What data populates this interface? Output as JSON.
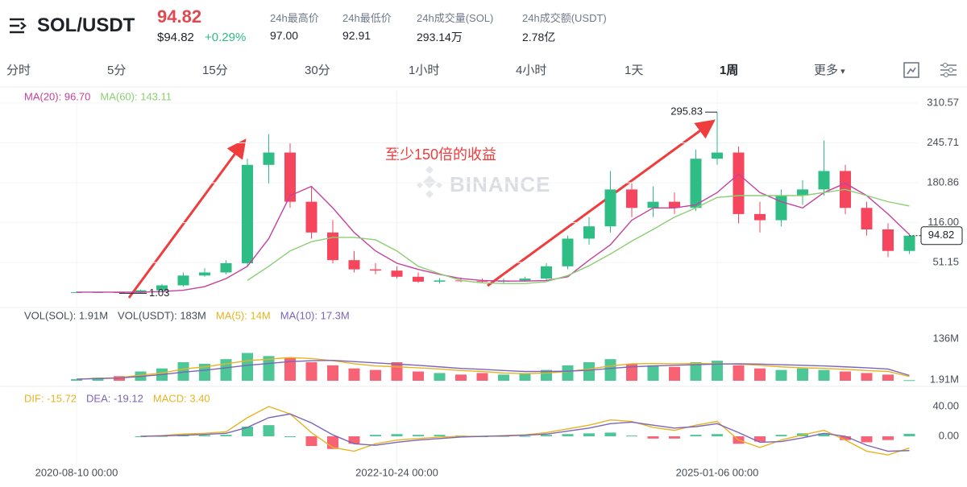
{
  "header": {
    "symbol": "SOL/USDT",
    "price": "94.82",
    "price_usd": "$94.82",
    "change": "+0.29%",
    "stats": [
      {
        "label": "24h最高价",
        "value": "97.00"
      },
      {
        "label": "24h最低价",
        "value": "92.91"
      },
      {
        "label": "24h成交量(SOL)",
        "value": "293.14万"
      },
      {
        "label": "24h成交额(USDT)",
        "value": "2.78亿"
      }
    ]
  },
  "tabs": [
    "分时",
    "5分",
    "15分",
    "30分",
    "1小时",
    "4小时",
    "1天",
    "1周",
    "更多"
  ],
  "annotation": "至少150倍的收益",
  "watermark": "BINANCE",
  "chart_data": [
    {
      "type": "candlestick",
      "legend": [
        "MA(20): 96.70",
        "MA(60): 143.11"
      ],
      "categories": [
        "2020-08-10 00:00",
        null,
        null,
        null,
        null,
        null,
        null,
        null,
        null,
        null,
        null,
        null,
        null,
        null,
        null,
        "2022-10-24 00:00",
        null,
        null,
        null,
        null,
        null,
        null,
        null,
        null,
        null,
        null,
        null,
        null,
        null,
        null,
        "2025-01-06 00:00",
        null,
        null,
        null,
        null,
        null,
        null,
        null,
        null,
        null
      ],
      "open": [
        3,
        3,
        3,
        2,
        6,
        14,
        30,
        35,
        50,
        210,
        230,
        150,
        100,
        55,
        40,
        38,
        28,
        20,
        22,
        21,
        20,
        22,
        25,
        45,
        90,
        110,
        170,
        140,
        150,
        140,
        220,
        230,
        130,
        120,
        160,
        170,
        200,
        140,
        105,
        70
      ],
      "high": [
        4,
        4,
        3.5,
        7,
        16,
        35,
        42,
        55,
        220,
        260,
        245,
        175,
        120,
        70,
        50,
        45,
        35,
        26,
        27,
        25,
        25,
        28,
        50,
        95,
        125,
        200,
        180,
        175,
        165,
        235,
        295.83,
        240,
        150,
        170,
        185,
        250,
        210,
        150,
        115,
        98
      ],
      "low": [
        2.5,
        2.5,
        1.03,
        1.8,
        5,
        12,
        28,
        32,
        45,
        180,
        140,
        90,
        50,
        35,
        32,
        25,
        18,
        17,
        19,
        18,
        18,
        20,
        23,
        40,
        80,
        100,
        125,
        125,
        130,
        135,
        210,
        115,
        100,
        110,
        145,
        160,
        130,
        95,
        60,
        65
      ],
      "close": [
        3,
        3,
        2,
        6,
        14,
        30,
        35,
        50,
        210,
        230,
        150,
        100,
        55,
        40,
        38,
        28,
        20,
        22,
        21,
        20,
        22,
        25,
        45,
        90,
        110,
        170,
        140,
        150,
        140,
        220,
        230,
        130,
        120,
        160,
        170,
        200,
        140,
        105,
        70,
        94.82
      ],
      "ma20": [
        3,
        3,
        3,
        3,
        4,
        6,
        12,
        25,
        45,
        90,
        160,
        175,
        140,
        100,
        70,
        50,
        40,
        32,
        25,
        22,
        21,
        21,
        22,
        28,
        55,
        80,
        120,
        140,
        140,
        145,
        165,
        195,
        165,
        150,
        140,
        165,
        180,
        160,
        130,
        96.7
      ],
      "ma60": [
        null,
        null,
        null,
        null,
        null,
        null,
        null,
        null,
        22,
        45,
        70,
        85,
        92,
        92,
        88,
        70,
        45,
        33,
        22,
        18,
        17,
        17,
        20,
        30,
        46,
        65,
        86,
        105,
        125,
        140,
        157,
        160,
        160,
        160,
        160,
        165,
        170,
        160,
        150,
        143.11
      ],
      "ma20_color": "#c4429e",
      "ma60_color": "#8bcf73",
      "up_color": "#2ebd85",
      "down_color": "#f6465d",
      "ylim": [
        -22,
        331.5
      ],
      "yticks": [
        310.57,
        245.71,
        180.86,
        {
          "value": 116,
          "label": "116.00"
        },
        51.15
      ],
      "grid": true
    },
    {
      "type": "bar",
      "legend": [
        "VOL(SOL): 1.91M",
        "VOL(USDT): 183M",
        "MA(5): 14M",
        "MA(10): 17.3M"
      ],
      "values": [
        5,
        10,
        15,
        30,
        40,
        60,
        55,
        70,
        90,
        80,
        75,
        60,
        50,
        40,
        35,
        60,
        30,
        25,
        20,
        25,
        20,
        25,
        35,
        50,
        60,
        70,
        55,
        50,
        45,
        60,
        65,
        50,
        40,
        35,
        40,
        35,
        30,
        25,
        20,
        1.91
      ],
      "ma5": [
        5,
        8,
        10,
        18,
        25,
        38,
        45,
        55,
        65,
        70,
        75,
        72,
        65,
        55,
        48,
        45,
        42,
        38,
        33,
        30,
        25,
        23,
        25,
        30,
        38,
        48,
        55,
        56,
        55,
        56,
        55,
        54,
        50,
        45,
        42,
        40,
        37,
        33,
        30,
        14
      ],
      "ma10": [
        5,
        7,
        9,
        14,
        20,
        28,
        34,
        42,
        50,
        56,
        62,
        65,
        66,
        62,
        58,
        54,
        50,
        45,
        40,
        37,
        33,
        30,
        30,
        31,
        34,
        40,
        45,
        48,
        50,
        52,
        54,
        55,
        54,
        52,
        50,
        48,
        45,
        42,
        38,
        17.3
      ],
      "ma5_color": "#e6b422",
      "ma10_color": "#7b65b8",
      "ylim": [
        0,
        180
      ],
      "yticks": [
        {
          "value": 136,
          "label": "136M"
        },
        {
          "value": 1.91,
          "label": "1.91M"
        }
      ]
    },
    {
      "type": "macd",
      "legend": [
        "DIF: -15.72",
        "DEA: -19.12",
        "MACD: 3.40"
      ],
      "dif": [
        null,
        null,
        null,
        0,
        1,
        3,
        4,
        6,
        25,
        40,
        30,
        5,
        -15,
        -20,
        -10,
        -5,
        -3,
        -1,
        0,
        0,
        1,
        2,
        5,
        10,
        15,
        22,
        20,
        12,
        8,
        15,
        20,
        -5,
        -15,
        -5,
        2,
        8,
        -5,
        -20,
        -25,
        -15.72
      ],
      "dea": [
        null,
        null,
        null,
        0,
        0.5,
        1.5,
        2.5,
        4,
        12,
        25,
        30,
        18,
        2,
        -10,
        -12,
        -8,
        -5,
        -3,
        -1,
        0,
        0.5,
        1.5,
        3,
        7,
        11,
        17,
        19,
        15,
        11,
        13,
        17,
        5,
        -8,
        -7,
        -2,
        4,
        0,
        -12,
        -20,
        -19.12
      ],
      "macd": [
        null,
        null,
        null,
        0,
        0.5,
        1.5,
        1.5,
        2,
        13,
        15,
        0,
        -13,
        -17,
        -10,
        2,
        3,
        2,
        2,
        1,
        0,
        0.5,
        0.5,
        2,
        3,
        4,
        5,
        1,
        -3,
        -3,
        2,
        3,
        -10,
        -7,
        2,
        4,
        4,
        -5,
        -8,
        -5,
        3.4
      ],
      "dif_color": "#e6b422",
      "dea_color": "#7b65b8",
      "ylim": [
        -41,
        61.6
      ],
      "yticks": [
        {
          "value": 40,
          "label": "40.00"
        },
        {
          "value": 0,
          "label": "0.00"
        }
      ]
    }
  ]
}
